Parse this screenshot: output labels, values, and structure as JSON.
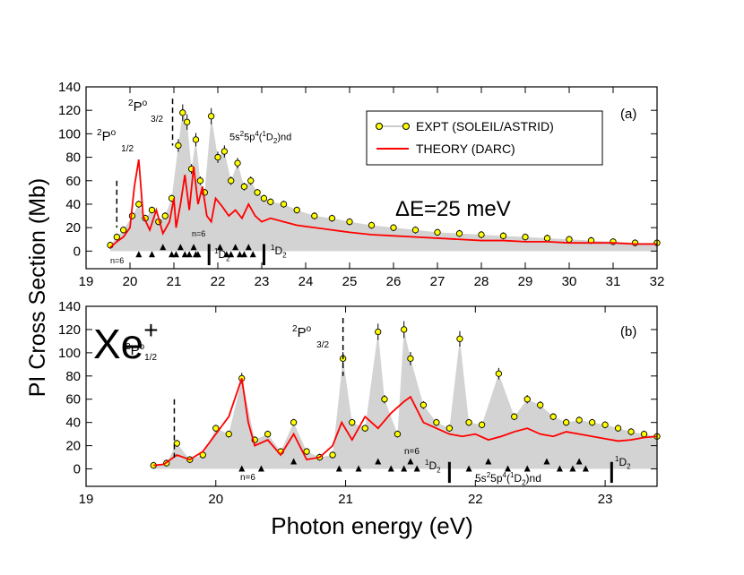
{
  "figure": {
    "ylabel": "PI Cross Section (Mb)",
    "xlabel": "Photon energy (eV)"
  },
  "panel_a": {
    "tag": "(a)",
    "resolution": "ΔE=25 meV",
    "legend": [
      "EXPT (SOLEIL/ASTRID)",
      "THEORY (DARC)"
    ],
    "thresholds": {
      "p12": {
        "text": "P",
        "sup_left": "2",
        "sup_right": "o",
        "sub": "1/2"
      },
      "p32": {
        "text": "P",
        "sup_left": "2",
        "sup_right": "o",
        "sub": "3/2"
      }
    },
    "series_label": {
      "text": "5s",
      "sup1": "2",
      "mid": "5p",
      "sup2": "4",
      "paren": "(",
      "sup3": "1",
      "tail": "D",
      "sub": "2",
      "end": ")nd"
    },
    "n_labels": [
      "n=6",
      "n=6"
    ],
    "d2_labels": [
      "D",
      "D"
    ]
  },
  "panel_b": {
    "tag": "(b)",
    "ion": "Xe",
    "ion_charge": "+",
    "thresholds": {
      "p12": {
        "text": "P",
        "sup_left": "2",
        "sup_right": "o",
        "sub": "1/2"
      },
      "p32": {
        "text": "P",
        "sup_left": "2",
        "sup_right": "o",
        "sub": "3/2"
      }
    },
    "series_label": {
      "text": "5s",
      "sup1": "2",
      "mid": "5p",
      "sup2": "4",
      "paren": "(",
      "sup3": "1",
      "tail": "D",
      "sub": "2",
      "end": ")nd"
    },
    "n_labels": [
      "n=6",
      "n=6"
    ],
    "d2_labels": [
      "D",
      "D"
    ]
  },
  "colors": {
    "expt_fill": "#ffff00",
    "theory": "#ff0000",
    "shade": "#d3d3d3"
  },
  "chart_data": [
    {
      "type": "line",
      "title": "(a)",
      "xlabel": "Photon energy (eV)",
      "ylabel": "PI Cross Section (Mb)",
      "xlim": [
        19,
        32
      ],
      "ylim": [
        -15,
        140
      ],
      "xticks": [
        19,
        20,
        21,
        22,
        23,
        24,
        25,
        26,
        27,
        28,
        29,
        30,
        31,
        32
      ],
      "yticks": [
        0,
        20,
        40,
        60,
        80,
        100,
        120,
        140
      ],
      "markers": {
        "p12_threshold": 19.7,
        "p32_threshold": 20.97,
        "d2_limits": [
          21.8,
          23.05
        ],
        "triangles": [
          20.2,
          20.5,
          20.75,
          20.95,
          21.05,
          21.15,
          21.25,
          21.35,
          21.45,
          21.55,
          21.5,
          22.05,
          22.2,
          22.3,
          22.4,
          22.5,
          22.6,
          22.7,
          22.8
        ]
      },
      "series": [
        {
          "name": "EXPT (SOLEIL/ASTRID)",
          "x": [
            19.55,
            19.7,
            19.85,
            20.05,
            20.2,
            20.35,
            20.5,
            20.65,
            20.8,
            20.95,
            21.1,
            21.2,
            21.3,
            21.4,
            21.5,
            21.6,
            21.7,
            21.85,
            22.0,
            22.15,
            22.3,
            22.45,
            22.6,
            22.75,
            22.9,
            23.05,
            23.2,
            23.5,
            23.8,
            24.2,
            24.6,
            25.0,
            25.5,
            26.0,
            26.5,
            27.0,
            27.5,
            28.0,
            28.5,
            29.0,
            29.5,
            30.0,
            30.5,
            31.0,
            31.5,
            32.0
          ],
          "values": [
            5,
            12,
            18,
            30,
            40,
            28,
            35,
            25,
            30,
            45,
            90,
            118,
            110,
            70,
            95,
            60,
            50,
            115,
            80,
            85,
            60,
            75,
            55,
            60,
            50,
            45,
            42,
            40,
            35,
            30,
            28,
            25,
            22,
            20,
            18,
            16,
            15,
            14,
            13,
            12,
            11,
            10,
            9,
            8,
            7,
            7
          ]
        },
        {
          "name": "THEORY (DARC)",
          "x": [
            19.55,
            19.7,
            19.85,
            20.0,
            20.1,
            20.2,
            20.3,
            20.45,
            20.6,
            20.75,
            20.9,
            21.0,
            21.05,
            21.15,
            21.25,
            21.35,
            21.45,
            21.55,
            21.65,
            21.75,
            21.85,
            21.95,
            22.1,
            22.25,
            22.4,
            22.55,
            22.7,
            22.85,
            23.0,
            23.2,
            23.5,
            23.8,
            24.2,
            24.6,
            25.0,
            25.5,
            26.0,
            26.5,
            27.0,
            27.5,
            28.0,
            28.5,
            29.0,
            29.5,
            30.0,
            30.5,
            31.0,
            31.5,
            32.0
          ],
          "values": [
            3,
            8,
            12,
            20,
            55,
            78,
            30,
            18,
            35,
            15,
            25,
            45,
            20,
            40,
            65,
            35,
            72,
            40,
            55,
            30,
            25,
            45,
            38,
            30,
            35,
            28,
            40,
            30,
            25,
            28,
            25,
            22,
            20,
            18,
            16,
            14,
            13,
            12,
            11,
            10,
            9,
            9,
            8,
            8,
            7,
            7,
            7,
            6,
            6
          ]
        }
      ]
    },
    {
      "type": "line",
      "title": "(b)",
      "xlabel": "Photon energy (eV)",
      "ylabel": "PI Cross Section (Mb)",
      "xlim": [
        19,
        23.4
      ],
      "ylim": [
        -15,
        140
      ],
      "xticks": [
        19,
        20,
        21,
        22,
        23
      ],
      "yticks": [
        0,
        20,
        40,
        60,
        80,
        100,
        120,
        140
      ],
      "markers": {
        "p12_threshold": 19.68,
        "p32_threshold": 20.98,
        "d2_limits": [
          21.8,
          23.05
        ],
        "triangles": [
          20.2,
          20.35,
          20.6,
          20.95,
          21.1,
          21.25,
          21.35,
          21.45,
          21.5,
          21.55,
          21.95,
          22.1,
          22.25,
          22.4,
          22.55,
          22.65,
          22.75,
          22.8,
          22.85
        ]
      },
      "series": [
        {
          "name": "EXPT (SOLEIL/ASTRID)",
          "x": [
            19.52,
            19.62,
            19.7,
            19.8,
            19.9,
            20.0,
            20.1,
            20.2,
            20.3,
            20.4,
            20.5,
            20.6,
            20.7,
            20.8,
            20.9,
            20.98,
            21.05,
            21.15,
            21.25,
            21.3,
            21.4,
            21.45,
            21.5,
            21.6,
            21.7,
            21.8,
            21.88,
            21.95,
            22.05,
            22.18,
            22.3,
            22.4,
            22.5,
            22.6,
            22.7,
            22.8,
            22.9,
            23.0,
            23.1,
            23.2,
            23.3,
            23.4
          ],
          "values": [
            3,
            5,
            22,
            8,
            12,
            35,
            30,
            78,
            25,
            30,
            15,
            40,
            15,
            10,
            12,
            95,
            40,
            35,
            118,
            60,
            30,
            120,
            95,
            55,
            40,
            35,
            112,
            40,
            38,
            82,
            45,
            60,
            55,
            45,
            40,
            42,
            40,
            38,
            35,
            32,
            30,
            28
          ]
        },
        {
          "name": "THEORY (DARC)",
          "x": [
            19.52,
            19.6,
            19.7,
            19.8,
            19.9,
            20.0,
            20.1,
            20.2,
            20.25,
            20.3,
            20.4,
            20.5,
            20.6,
            20.7,
            20.8,
            20.9,
            20.97,
            21.05,
            21.15,
            21.25,
            21.35,
            21.45,
            21.5,
            21.6,
            21.7,
            21.8,
            21.9,
            22.0,
            22.1,
            22.2,
            22.3,
            22.4,
            22.5,
            22.6,
            22.7,
            22.8,
            22.9,
            23.0,
            23.1,
            23.2,
            23.3,
            23.4
          ],
          "values": [
            3,
            4,
            12,
            8,
            15,
            30,
            45,
            78,
            40,
            20,
            25,
            12,
            30,
            8,
            10,
            20,
            40,
            25,
            45,
            35,
            48,
            58,
            62,
            40,
            35,
            30,
            28,
            30,
            25,
            28,
            32,
            35,
            30,
            28,
            32,
            30,
            28,
            26,
            24,
            25,
            27,
            28
          ]
        }
      ]
    }
  ]
}
